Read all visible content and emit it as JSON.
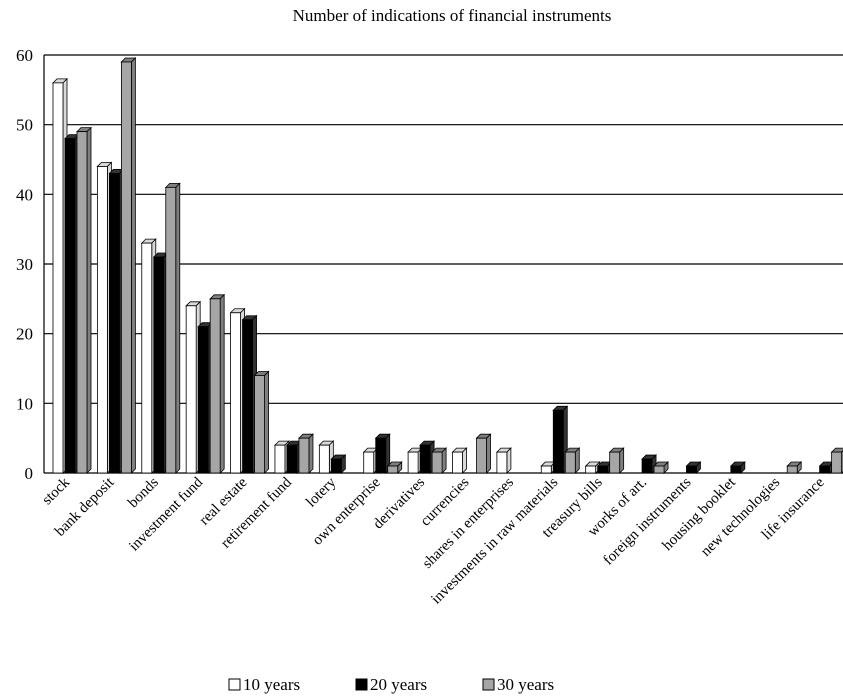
{
  "chart_data": {
    "type": "bar",
    "title": "Number of indications of financial instruments",
    "xlabel": "",
    "ylabel": "",
    "ylim": [
      0,
      60
    ],
    "yticks": [
      0,
      10,
      20,
      30,
      40,
      50,
      60
    ],
    "grid": true,
    "legend_position": "bottom",
    "categories": [
      "stock",
      "bank deposit",
      "bonds",
      "investment fund",
      "real estate",
      "retirement fund",
      "lotery",
      "own enterprise",
      "derivatives",
      "currencies",
      "shares in enterprises",
      "investments in raw materials",
      "treasury bills",
      "works of art.",
      "foreign instruments",
      "housing booklet",
      "new technologies",
      "life insurance"
    ],
    "series": [
      {
        "name": "10 years",
        "color": "#ffffff",
        "values": [
          56,
          44,
          33,
          24,
          23,
          4,
          4,
          3,
          3,
          3,
          3,
          1,
          1,
          0,
          0,
          0,
          0,
          0
        ]
      },
      {
        "name": "20 years",
        "color": "#000000",
        "values": [
          48,
          43,
          31,
          21,
          22,
          4,
          2,
          5,
          4,
          0,
          0,
          9,
          1,
          2,
          1,
          1,
          0,
          1
        ]
      },
      {
        "name": "30 years",
        "color": "#a6a6a6",
        "values": [
          49,
          59,
          41,
          25,
          14,
          5,
          0,
          1,
          3,
          5,
          0,
          3,
          3,
          1,
          0,
          0,
          1,
          3
        ]
      }
    ]
  }
}
